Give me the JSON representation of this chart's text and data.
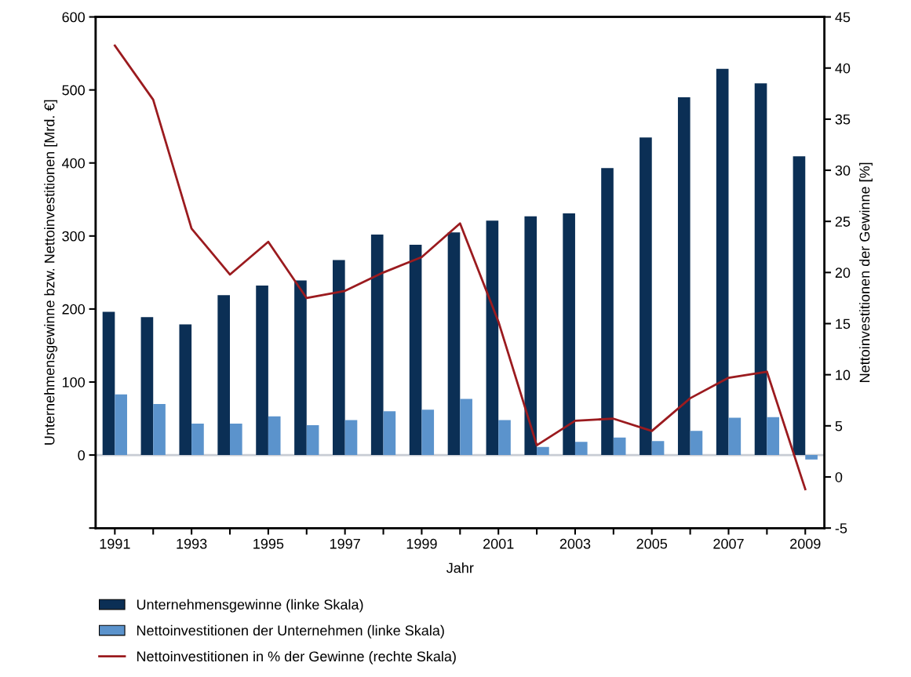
{
  "chart_data": {
    "type": "bar",
    "categories": [
      "1991",
      null,
      "1993",
      null,
      "1995",
      null,
      "1997",
      null,
      "1999",
      null,
      "2001",
      null,
      "2003",
      null,
      "2005",
      null,
      "2007",
      null,
      "2009"
    ],
    "xlabel": "Jahr",
    "ylabel": "Unternehmensgewinne bzw. Nettoinvestitionen [Mrd. €]",
    "y2label": "Nettoinvestitionen der Gewinne [%]",
    "series": [
      {
        "name": "Unternehmensgewinne (linke Skala)",
        "color": "#0b2f55",
        "values": [
          196,
          189,
          179,
          219,
          232,
          239,
          267,
          302,
          288,
          305,
          321,
          327,
          331,
          393,
          435,
          490,
          529,
          509,
          409
        ]
      },
      {
        "name": "Nettoinvestitionen der Unternehmen (linke Skala)",
        "color": "#5b93cc",
        "values": [
          83,
          70,
          43,
          43,
          53,
          41,
          48,
          60,
          62,
          77,
          48,
          11,
          18,
          24,
          19,
          33,
          51,
          52,
          -6
        ]
      },
      {
        "name": "Nettoinvestitionen in % der Gewinne (rechte Skala)",
        "type": "line",
        "axis": "y2",
        "color": "#9b1b1f",
        "values": [
          42.2,
          36.9,
          24.3,
          19.8,
          23.0,
          17.5,
          18.2,
          20.0,
          21.5,
          24.8,
          15.2,
          3.1,
          5.5,
          5.7,
          4.5,
          7.7,
          9.7,
          10.3,
          -1.2
        ]
      }
    ],
    "ylim": [
      -100,
      600
    ],
    "yticks": [
      {
        "value": -100,
        "label": null
      },
      0,
      100,
      200,
      300,
      400,
      500,
      600
    ],
    "y2lim": [
      -5,
      45
    ],
    "y2ticks": [
      -5,
      0,
      5,
      10,
      15,
      20,
      25,
      30,
      35,
      40,
      45
    ],
    "ref_lines": [
      {
        "axis": "y",
        "value": 0,
        "label": null,
        "color": "#c8ccd4"
      }
    ],
    "grid": false,
    "legend": "bottom",
    "marker": "none",
    "line_style": "solid"
  }
}
